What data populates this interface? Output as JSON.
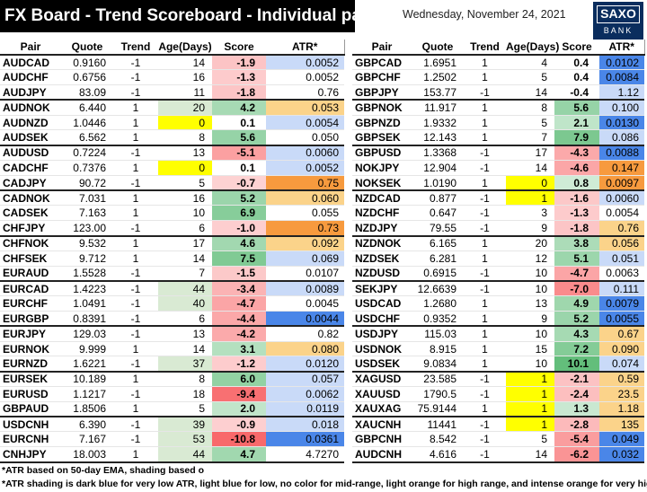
{
  "title": "FX Board - Trend Scoreboard - Individual pairs",
  "date": "Wednesday, November 24, 2021",
  "logo": {
    "line1": "SAXO",
    "line2": "BANK"
  },
  "headers": [
    "Pair",
    "Quote",
    "Trend",
    "Age(Days)",
    "Score",
    "ATR*"
  ],
  "colors": {
    "score_pos_strong": "#63be7b",
    "score_neg_strong": "#f8696b",
    "atr_dark_blue": "#4a86e8",
    "atr_light_blue": "#c9daf8",
    "atr_light_orange": "#fbd38a",
    "atr_intense_orange": "#f79a3e",
    "age_yellow": "#ffff00",
    "age_green": "#d9ead3"
  },
  "left_groups": [
    [
      [
        "AUDCAD",
        "0.9160",
        "-1",
        "14",
        "-1.9",
        "0.0052"
      ],
      [
        "AUDCHF",
        "0.6756",
        "-1",
        "16",
        "-1.3",
        "0.0052"
      ],
      [
        "AUDJPY",
        "83.09",
        "-1",
        "11",
        "-1.8",
        "0.76"
      ]
    ],
    [
      [
        "AUDNOK",
        "6.440",
        "1",
        "20",
        "4.2",
        "0.053"
      ],
      [
        "AUDNZD",
        "1.0446",
        "1",
        "0",
        "0.1",
        "0.0054"
      ],
      [
        "AUDSEK",
        "6.562",
        "1",
        "8",
        "5.6",
        "0.050"
      ]
    ],
    [
      [
        "AUDUSD",
        "0.7224",
        "-1",
        "13",
        "-5.1",
        "0.0060"
      ],
      [
        "CADCHF",
        "0.7376",
        "1",
        "0",
        "0.1",
        "0.0052"
      ],
      [
        "CADJPY",
        "90.72",
        "-1",
        "5",
        "-0.7",
        "0.75"
      ]
    ],
    [
      [
        "CADNOK",
        "7.031",
        "1",
        "16",
        "5.2",
        "0.060"
      ],
      [
        "CADSEK",
        "7.163",
        "1",
        "10",
        "6.9",
        "0.055"
      ],
      [
        "CHFJPY",
        "123.00",
        "-1",
        "6",
        "-1.0",
        "0.73"
      ]
    ],
    [
      [
        "CHFNOK",
        "9.532",
        "1",
        "17",
        "4.6",
        "0.092"
      ],
      [
        "CHFSEK",
        "9.712",
        "1",
        "14",
        "7.5",
        "0.069"
      ],
      [
        "EURAUD",
        "1.5528",
        "-1",
        "7",
        "-1.5",
        "0.0107"
      ]
    ],
    [
      [
        "EURCAD",
        "1.4223",
        "-1",
        "44",
        "-3.4",
        "0.0089"
      ],
      [
        "EURCHF",
        "1.0491",
        "-1",
        "40",
        "-4.7",
        "0.0045"
      ],
      [
        "EURGBP",
        "0.8391",
        "-1",
        "6",
        "-4.4",
        "0.0044"
      ]
    ],
    [
      [
        "EURJPY",
        "129.03",
        "-1",
        "13",
        "-4.2",
        "0.82"
      ],
      [
        "EURNOK",
        "9.999",
        "1",
        "14",
        "3.1",
        "0.080"
      ],
      [
        "EURNZD",
        "1.6221",
        "-1",
        "37",
        "-1.2",
        "0.0120"
      ]
    ],
    [
      [
        "EURSEK",
        "10.189",
        "1",
        "8",
        "6.0",
        "0.057"
      ],
      [
        "EURUSD",
        "1.1217",
        "-1",
        "18",
        "-9.4",
        "0.0062"
      ],
      [
        "GBPAUD",
        "1.8506",
        "1",
        "5",
        "2.0",
        "0.0119"
      ]
    ],
    [
      [
        "USDCNH",
        "6.390",
        "-1",
        "39",
        "-0.9",
        "0.018"
      ],
      [
        "EURCNH",
        "7.167",
        "-1",
        "53",
        "-10.8",
        "0.0361"
      ],
      [
        "CNHJPY",
        "18.003",
        "1",
        "44",
        "4.7",
        "4.7270"
      ]
    ]
  ],
  "right_groups": [
    [
      [
        "GBPCAD",
        "1.6951",
        "1",
        "4",
        "0.4",
        "0.0102"
      ],
      [
        "GBPCHF",
        "1.2502",
        "1",
        "5",
        "0.4",
        "0.0084"
      ],
      [
        "GBPJPY",
        "153.77",
        "-1",
        "14",
        "-0.4",
        "1.12"
      ]
    ],
    [
      [
        "GBPNOK",
        "11.917",
        "1",
        "8",
        "5.6",
        "0.100"
      ],
      [
        "GBPNZD",
        "1.9332",
        "1",
        "5",
        "2.1",
        "0.0130"
      ],
      [
        "GBPSEK",
        "12.143",
        "1",
        "7",
        "7.9",
        "0.086"
      ]
    ],
    [
      [
        "GBPUSD",
        "1.3368",
        "-1",
        "17",
        "-4.3",
        "0.0088"
      ],
      [
        "NOKJPY",
        "12.904",
        "-1",
        "14",
        "-4.6",
        "0.147"
      ],
      [
        "NOKSEK",
        "1.0190",
        "1",
        "0",
        "0.8",
        "0.0097"
      ]
    ],
    [
      [
        "NZDCAD",
        "0.877",
        "-1",
        "1",
        "-1.6",
        "0.0060"
      ],
      [
        "NZDCHF",
        "0.647",
        "-1",
        "3",
        "-1.3",
        "0.0054"
      ],
      [
        "NZDJPY",
        "79.55",
        "-1",
        "9",
        "-1.8",
        "0.76"
      ]
    ],
    [
      [
        "NZDNOK",
        "6.165",
        "1",
        "20",
        "3.8",
        "0.056"
      ],
      [
        "NZDSEK",
        "6.281",
        "1",
        "12",
        "5.1",
        "0.051"
      ],
      [
        "NZDUSD",
        "0.6915",
        "-1",
        "10",
        "-4.7",
        "0.0063"
      ]
    ],
    [
      [
        "SEKJPY",
        "12.6639",
        "-1",
        "10",
        "-7.0",
        "0.111"
      ],
      [
        "USDCAD",
        "1.2680",
        "1",
        "13",
        "4.9",
        "0.0079"
      ],
      [
        "USDCHF",
        "0.9352",
        "1",
        "9",
        "5.2",
        "0.0055"
      ]
    ],
    [
      [
        "USDJPY",
        "115.03",
        "1",
        "10",
        "4.3",
        "0.67"
      ],
      [
        "USDNOK",
        "8.915",
        "1",
        "15",
        "7.2",
        "0.090"
      ],
      [
        "USDSEK",
        "9.0834",
        "1",
        "10",
        "10.1",
        "0.074"
      ]
    ],
    [
      [
        "XAGUSD",
        "23.585",
        "-1",
        "1",
        "-2.1",
        "0.59"
      ],
      [
        "XAUUSD",
        "1790.5",
        "-1",
        "1",
        "-2.4",
        "23.5"
      ],
      [
        "XAUXAG",
        "75.9144",
        "1",
        "1",
        "1.3",
        "1.18"
      ]
    ],
    [
      [
        "XAUCNH",
        "11441",
        "-1",
        "1",
        "-2.8",
        "135"
      ],
      [
        "GBPCNH",
        "8.542",
        "-1",
        "5",
        "-5.4",
        "0.049"
      ],
      [
        "AUDCNH",
        "4.616",
        "-1",
        "14",
        "-6.2",
        "0.032"
      ]
    ]
  ],
  "atr_shading": {
    "left": [
      "light_blue",
      "",
      "",
      "light_orange",
      "light_blue",
      "",
      "light_blue",
      "light_blue",
      "intense_orange",
      "light_orange",
      "",
      "intense_orange",
      "light_orange",
      "light_blue",
      "",
      "light_blue",
      "",
      "dark_blue",
      "",
      "light_orange",
      "light_blue",
      "light_blue",
      "light_blue",
      "light_blue",
      "light_blue",
      "dark_blue",
      ""
    ],
    "right": [
      "dark_blue",
      "dark_blue",
      "light_blue",
      "light_blue",
      "dark_blue",
      "light_blue",
      "dark_blue",
      "intense_orange",
      "intense_orange",
      "light_blue",
      "",
      "light_orange",
      "light_orange",
      "light_blue",
      "",
      "light_blue",
      "dark_blue",
      "dark_blue",
      "light_orange",
      "light_orange",
      "light_blue",
      "light_orange",
      "light_orange",
      "light_orange",
      "light_orange",
      "dark_blue",
      "dark_blue"
    ]
  },
  "age_shading": {
    "left": [
      "",
      "",
      "",
      "green",
      "yellow",
      "",
      "",
      "yellow",
      "",
      "",
      "",
      "",
      "",
      "",
      "",
      "green",
      "green",
      "",
      "",
      "",
      "green",
      "",
      "",
      "",
      "green",
      "green",
      "green"
    ],
    "right": [
      "",
      "",
      "",
      "",
      "",
      "",
      "",
      "",
      "yellow",
      "yellow",
      "",
      "",
      "",
      "",
      "",
      "",
      "",
      "",
      "",
      "",
      "",
      "yellow",
      "yellow",
      "yellow",
      "yellow",
      "",
      ""
    ]
  },
  "footnotes": [
    "*ATR based on 50-day EMA, shading based on co",
    "*ATR shading is dark blue for very low ATR, light blue for low, no color for mid-range, light orange for high range, and intense orange for very high"
  ]
}
